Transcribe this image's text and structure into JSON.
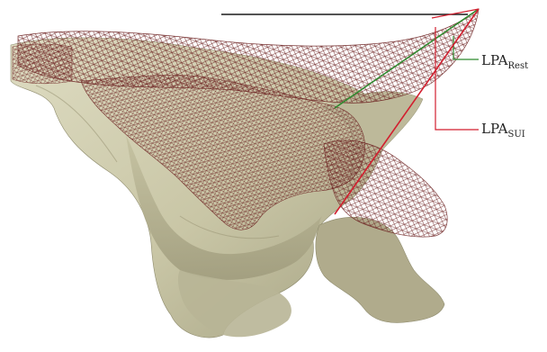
{
  "figure": {
    "labels": {
      "rest": {
        "main": "LPA",
        "sub": "Rest"
      },
      "sui": {
        "main": "LPA",
        "sub": "SUI"
      }
    },
    "colors": {
      "background": "#ffffff",
      "bone_fill": "#c9c6a6",
      "bone_shadow": "#a5a283",
      "bone_highlight": "#dedcc2",
      "bone_cut_face": "#b0ab8c",
      "mesh_line": "#6b1f1f",
      "mesh_fill": "#8b6a4c",
      "rest_line_color": "#2f8a2f",
      "sui_line_color": "#d21f2f",
      "reference_line_color": "#1a1a1a"
    },
    "icons": {
      "bone_model": "pelvic-bone-surface",
      "mesh_model": "soft-tissue-wireframe-mesh"
    }
  }
}
